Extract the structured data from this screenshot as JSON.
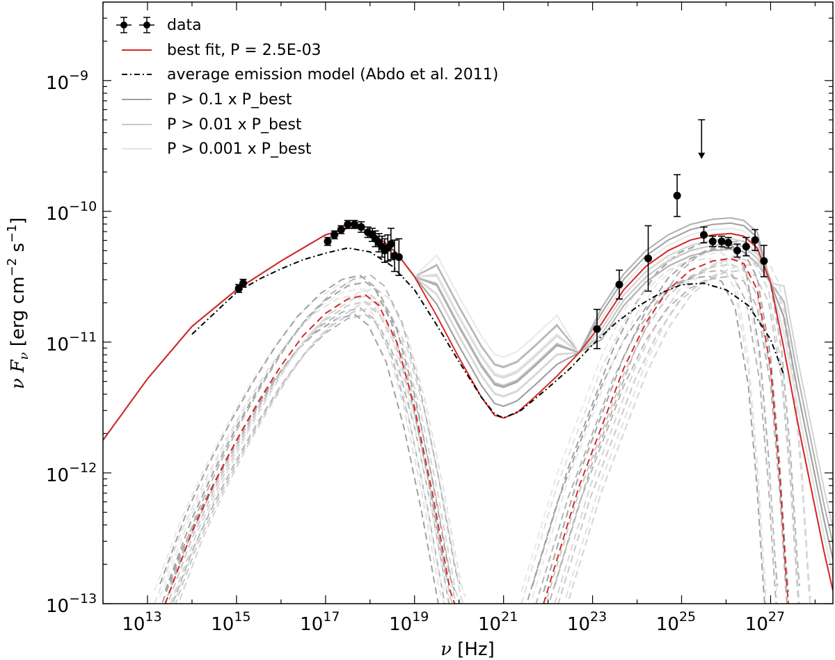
{
  "chart_data": {
    "type": "line",
    "xlabel_symbol": "ν",
    "xlabel_unit": "[Hz]",
    "ylabel": "ν F_ν [erg cm^-2 s^-1]",
    "ylabel_parts": {
      "prefix": "ν F",
      "sub": "ν",
      "unit_open": " [erg cm",
      "exp1": "−2",
      "mid": " s",
      "exp2": "−1",
      "unit_close": "]"
    },
    "x_scale": "log",
    "y_scale": "log",
    "xlim_log10": [
      12.0,
      28.4
    ],
    "ylim_log10": [
      -13.0,
      -8.4
    ],
    "x_ticks": [
      {
        "base": "10",
        "exp": "13",
        "log": 13
      },
      {
        "base": "10",
        "exp": "15",
        "log": 15
      },
      {
        "base": "10",
        "exp": "17",
        "log": 17
      },
      {
        "base": "10",
        "exp": "19",
        "log": 19
      },
      {
        "base": "10",
        "exp": "21",
        "log": 21
      },
      {
        "base": "10",
        "exp": "23",
        "log": 23
      },
      {
        "base": "10",
        "exp": "25",
        "log": 25
      },
      {
        "base": "10",
        "exp": "27",
        "log": 27
      }
    ],
    "y_ticks": [
      {
        "base": "10",
        "exp": "−13",
        "log": -13
      },
      {
        "base": "10",
        "exp": "−12",
        "log": -12
      },
      {
        "base": "10",
        "exp": "−11",
        "log": -11
      },
      {
        "base": "10",
        "exp": "−10",
        "log": -10
      },
      {
        "base": "10",
        "exp": "−9",
        "log": -9
      }
    ],
    "legend": {
      "placement": "top-left",
      "entries": [
        {
          "label": "data",
          "style": "errorbar"
        },
        {
          "label": "best fit, P = 2.5E-03",
          "style": "line",
          "color": "#d62728"
        },
        {
          "label": "average emission model (Abdo et al. 2011)",
          "style": "dashdot",
          "color": "#000000"
        },
        {
          "label": "P > 0.1 x P_best",
          "style": "line",
          "color": "#a0a0a0"
        },
        {
          "label": "P > 0.01 x P_best",
          "style": "line",
          "color": "#c8c8c8"
        },
        {
          "label": "P > 0.001 x P_best",
          "style": "line",
          "color": "#e4e4e4"
        }
      ]
    },
    "series": [
      {
        "name": "best fit, P = 2.5E-03",
        "color": "#d62728",
        "style": "solid",
        "points": [
          [
            12.0,
            -11.75
          ],
          [
            13.0,
            -11.28
          ],
          [
            14.0,
            -10.88
          ],
          [
            15.0,
            -10.6
          ],
          [
            15.5,
            -10.49
          ],
          [
            16.0,
            -10.38
          ],
          [
            16.5,
            -10.28
          ],
          [
            17.0,
            -10.18
          ],
          [
            17.5,
            -10.13
          ],
          [
            17.8,
            -10.13
          ],
          [
            18.0,
            -10.16
          ],
          [
            18.3,
            -10.23
          ],
          [
            18.6,
            -10.32
          ],
          [
            19.0,
            -10.5
          ],
          [
            19.5,
            -10.8
          ],
          [
            20.0,
            -11.12
          ],
          [
            20.5,
            -11.42
          ],
          [
            20.8,
            -11.56
          ],
          [
            21.0,
            -11.58
          ],
          [
            21.3,
            -11.54
          ],
          [
            21.7,
            -11.42
          ],
          [
            22.2,
            -11.26
          ],
          [
            22.7,
            -11.08
          ],
          [
            23.2,
            -10.86
          ],
          [
            23.7,
            -10.6
          ],
          [
            24.2,
            -10.42
          ],
          [
            24.7,
            -10.3
          ],
          [
            25.2,
            -10.22
          ],
          [
            25.7,
            -10.18
          ],
          [
            26.1,
            -10.17
          ],
          [
            26.4,
            -10.19
          ],
          [
            26.7,
            -10.28
          ],
          [
            27.0,
            -10.55
          ],
          [
            27.3,
            -11.05
          ],
          [
            27.6,
            -11.6
          ],
          [
            27.9,
            -12.1
          ],
          [
            28.2,
            -12.6
          ],
          [
            28.4,
            -12.9
          ]
        ]
      },
      {
        "name": "average emission model (Abdo et al. 2011)",
        "color": "#000000",
        "style": "dashdot",
        "points": [
          [
            14.0,
            -10.94
          ],
          [
            15.0,
            -10.62
          ],
          [
            15.5,
            -10.52
          ],
          [
            16.0,
            -10.44
          ],
          [
            16.5,
            -10.37
          ],
          [
            17.0,
            -10.32
          ],
          [
            17.5,
            -10.28
          ],
          [
            18.0,
            -10.31
          ],
          [
            18.5,
            -10.42
          ],
          [
            19.0,
            -10.6
          ],
          [
            19.5,
            -10.87
          ],
          [
            20.0,
            -11.15
          ],
          [
            20.5,
            -11.42
          ],
          [
            20.8,
            -11.55
          ],
          [
            21.0,
            -11.58
          ],
          [
            21.4,
            -11.52
          ],
          [
            22.0,
            -11.35
          ],
          [
            22.5,
            -11.2
          ],
          [
            23.0,
            -11.02
          ],
          [
            23.5,
            -10.86
          ],
          [
            24.0,
            -10.73
          ],
          [
            24.5,
            -10.63
          ],
          [
            25.0,
            -10.56
          ],
          [
            25.5,
            -10.55
          ],
          [
            26.0,
            -10.6
          ],
          [
            26.5,
            -10.72
          ],
          [
            27.0,
            -10.98
          ],
          [
            27.3,
            -11.25
          ]
        ]
      },
      {
        "name": "best fit (synchrotron component)",
        "color": "#d62728",
        "style": "dashed",
        "points": [
          [
            13.4,
            -13.0
          ],
          [
            14.0,
            -12.45
          ],
          [
            14.5,
            -12.08
          ],
          [
            15.0,
            -11.75
          ],
          [
            15.5,
            -11.45
          ],
          [
            16.0,
            -11.18
          ],
          [
            16.5,
            -10.95
          ],
          [
            17.0,
            -10.78
          ],
          [
            17.5,
            -10.67
          ],
          [
            17.9,
            -10.64
          ],
          [
            18.2,
            -10.72
          ],
          [
            18.6,
            -11.0
          ],
          [
            19.0,
            -11.5
          ],
          [
            19.4,
            -12.15
          ],
          [
            19.8,
            -12.9
          ],
          [
            19.9,
            -13.0
          ]
        ]
      },
      {
        "name": "best fit (inverse Compton component)",
        "color": "#d62728",
        "style": "dashed",
        "points": [
          [
            21.9,
            -13.0
          ],
          [
            22.3,
            -12.55
          ],
          [
            22.7,
            -12.1
          ],
          [
            23.2,
            -11.65
          ],
          [
            23.7,
            -11.2
          ],
          [
            24.2,
            -10.85
          ],
          [
            24.7,
            -10.6
          ],
          [
            25.2,
            -10.45
          ],
          [
            25.7,
            -10.38
          ],
          [
            26.1,
            -10.36
          ],
          [
            26.4,
            -10.4
          ],
          [
            26.7,
            -10.6
          ],
          [
            27.0,
            -11.2
          ],
          [
            27.2,
            -12.0
          ],
          [
            27.35,
            -12.8
          ],
          [
            27.4,
            -13.0
          ]
        ]
      }
    ],
    "data_points": [
      {
        "x": 15.05,
        "y": -10.59,
        "yerr_lo": 0.03,
        "yerr_hi": 0.03
      },
      {
        "x": 15.15,
        "y": -10.55,
        "yerr_lo": 0.03,
        "yerr_hi": 0.03
      },
      {
        "x": 17.05,
        "y": -10.23,
        "yerr_lo": 0.03,
        "yerr_hi": 0.03
      },
      {
        "x": 17.2,
        "y": -10.18,
        "yerr_lo": 0.03,
        "yerr_hi": 0.03
      },
      {
        "x": 17.35,
        "y": -10.14,
        "yerr_lo": 0.03,
        "yerr_hi": 0.03
      },
      {
        "x": 17.5,
        "y": -10.1,
        "yerr_lo": 0.03,
        "yerr_hi": 0.03
      },
      {
        "x": 17.65,
        "y": -10.1,
        "yerr_lo": 0.03,
        "yerr_hi": 0.03
      },
      {
        "x": 17.8,
        "y": -10.12,
        "yerr_lo": 0.04,
        "yerr_hi": 0.04
      },
      {
        "x": 17.95,
        "y": -10.16,
        "yerr_lo": 0.04,
        "yerr_hi": 0.04
      },
      {
        "x": 18.05,
        "y": -10.18,
        "yerr_lo": 0.05,
        "yerr_hi": 0.05
      },
      {
        "x": 18.12,
        "y": -10.21,
        "yerr_lo": 0.06,
        "yerr_hi": 0.06
      },
      {
        "x": 18.2,
        "y": -10.24,
        "yerr_lo": 0.07,
        "yerr_hi": 0.07
      },
      {
        "x": 18.27,
        "y": -10.27,
        "yerr_lo": 0.08,
        "yerr_hi": 0.08
      },
      {
        "x": 18.33,
        "y": -10.3,
        "yerr_lo": 0.09,
        "yerr_hi": 0.09
      },
      {
        "x": 18.4,
        "y": -10.28,
        "yerr_lo": 0.1,
        "yerr_hi": 0.1
      },
      {
        "x": 18.47,
        "y": -10.25,
        "yerr_lo": 0.12,
        "yerr_hi": 0.12
      },
      {
        "x": 18.55,
        "y": -10.34,
        "yerr_lo": 0.12,
        "yerr_hi": 0.12
      },
      {
        "x": 18.65,
        "y": -10.35,
        "yerr_lo": 0.14,
        "yerr_hi": 0.14
      },
      {
        "x": 23.1,
        "y": -10.9,
        "yerr_lo": 0.15,
        "yerr_hi": 0.15
      },
      {
        "x": 23.6,
        "y": -10.56,
        "yerr_lo": 0.11,
        "yerr_hi": 0.11
      },
      {
        "x": 24.25,
        "y": -10.36,
        "yerr_lo": 0.25,
        "yerr_hi": 0.25
      },
      {
        "x": 24.9,
        "y": -9.88,
        "yerr_lo": 0.16,
        "yerr_hi": 0.16
      },
      {
        "x": 25.5,
        "y": -10.18,
        "yerr_lo": 0.06,
        "yerr_hi": 0.06
      },
      {
        "x": 25.7,
        "y": -10.23,
        "yerr_lo": 0.04,
        "yerr_hi": 0.04
      },
      {
        "x": 25.9,
        "y": -10.23,
        "yerr_lo": 0.04,
        "yerr_hi": 0.04
      },
      {
        "x": 26.05,
        "y": -10.24,
        "yerr_lo": 0.04,
        "yerr_hi": 0.04
      },
      {
        "x": 26.25,
        "y": -10.3,
        "yerr_lo": 0.05,
        "yerr_hi": 0.05
      },
      {
        "x": 26.45,
        "y": -10.27,
        "yerr_lo": 0.07,
        "yerr_hi": 0.07
      },
      {
        "x": 26.65,
        "y": -10.22,
        "yerr_lo": 0.08,
        "yerr_hi": 0.08
      },
      {
        "x": 26.85,
        "y": -10.38,
        "yerr_lo": 0.12,
        "yerr_hi": 0.12
      }
    ],
    "upper_limits": [
      {
        "x": 25.45,
        "y": -9.3
      }
    ]
  }
}
